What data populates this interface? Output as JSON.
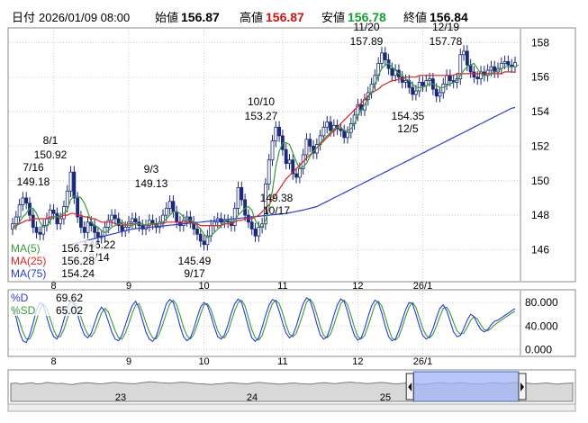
{
  "header": {
    "date_label": "日付",
    "datetime": "2026/01/09 08:00",
    "open_label": "始値",
    "open": "156.87",
    "high_label": "高値",
    "high": "156.87",
    "low_label": "安値",
    "low": "156.78",
    "close_label": "終値",
    "close": "156.84",
    "colors": {
      "high": "#d01010",
      "low": "#10a030"
    }
  },
  "chart_data": [
    {
      "type": "candlestick",
      "title": "",
      "x_ticks": [
        "8",
        "9",
        "10",
        "11",
        "12",
        "26/1"
      ],
      "y_ticks": [
        "146",
        "148",
        "150",
        "152",
        "154",
        "156",
        "158"
      ],
      "ylim": [
        144.2,
        158.8
      ],
      "grid": true,
      "legend_position": "bottom-left",
      "legend": [
        {
          "name": "MA(5)",
          "value": "156.71",
          "color": "#3a9a3a"
        },
        {
          "name": "MA(25)",
          "value": "156.28",
          "color": "#e02020"
        },
        {
          "name": "MA(75)",
          "value": "154.24",
          "color": "#2a3adc"
        }
      ],
      "annotations": [
        {
          "label": "7/16",
          "value": "149.18"
        },
        {
          "label": "8/1",
          "value": "150.92"
        },
        {
          "label": "8/14",
          "value": "146.22"
        },
        {
          "label": "9/3",
          "value": "149.13"
        },
        {
          "label": "9/17",
          "value": "145.49"
        },
        {
          "label": "10/10",
          "value": "153.27"
        },
        {
          "label": "10/17",
          "value": "149.38"
        },
        {
          "label": "11/20",
          "value": "157.89"
        },
        {
          "label": "12/5",
          "value": "154.35"
        },
        {
          "label": "12/19",
          "value": "157.78"
        }
      ],
      "colors": {
        "up": "#ffffff",
        "down": "#1a2a7a",
        "wick": "#1a2a7a"
      },
      "closes": [
        147.5,
        147.9,
        148.6,
        149.0,
        148.7,
        148.0,
        147.3,
        147.0,
        146.9,
        147.4,
        147.8,
        148.3,
        148.1,
        147.5,
        147.8,
        148.5,
        149.4,
        150.5,
        149.0,
        147.9,
        147.3,
        147.0,
        147.6,
        147.4,
        147.0,
        146.7,
        146.8,
        147.3,
        147.7,
        148.0,
        147.8,
        147.4,
        147.1,
        147.3,
        147.6,
        147.8,
        147.6,
        147.4,
        147.2,
        147.4,
        147.7,
        147.5,
        147.3,
        147.6,
        148.0,
        148.4,
        148.8,
        148.2,
        147.6,
        147.4,
        147.7,
        147.9,
        147.6,
        147.2,
        146.9,
        146.5,
        146.3,
        146.8,
        147.4,
        147.6,
        147.8,
        147.6,
        147.7,
        147.6,
        147.4,
        148.4,
        149.6,
        148.9,
        148.0,
        147.6,
        147.2,
        146.8,
        147.3,
        147.5,
        149.8,
        151.2,
        152.3,
        153.1,
        152.6,
        151.8,
        151.0,
        151.2,
        150.4,
        150.2,
        150.7,
        151.5,
        152.4,
        152.0,
        151.6,
        152.1,
        152.6,
        153.1,
        153.4,
        152.9,
        153.2,
        153.0,
        152.9,
        152.5,
        152.8,
        153.3,
        153.8,
        154.4,
        154.1,
        154.7,
        155.1,
        155.6,
        156.1,
        156.8,
        157.4,
        157.0,
        156.5,
        156.1,
        156.4,
        156.0,
        155.7,
        155.8,
        155.4,
        155.0,
        155.2,
        155.7,
        155.5,
        155.8,
        155.9,
        155.3,
        154.9,
        155.1,
        155.6,
        156.1,
        155.8,
        155.7,
        155.9,
        157.3,
        157.5,
        156.7,
        156.3,
        156.0,
        155.9,
        156.3,
        156.1,
        156.4,
        156.6,
        156.3,
        156.5,
        156.8,
        156.9,
        156.7,
        156.6,
        156.84
      ],
      "ma5": [
        147.2,
        147.3,
        147.6,
        147.9,
        148.1,
        148.4,
        148.4,
        148.1,
        147.6,
        147.3,
        147.4,
        147.7,
        147.9,
        147.9,
        148.0,
        148.1,
        148.3,
        148.9,
        149.1,
        149.1,
        149.0,
        148.7,
        148.2,
        147.6,
        147.4,
        147.3,
        147.1,
        147.0,
        147.1,
        147.3,
        147.4,
        147.5,
        147.6,
        147.5,
        147.4,
        147.4,
        147.5,
        147.5,
        147.5,
        147.4,
        147.5,
        147.5,
        147.4,
        147.5,
        147.6,
        147.8,
        148.0,
        148.2,
        148.2,
        148.1,
        147.9,
        147.8,
        147.7,
        147.6,
        147.4,
        147.2,
        146.9,
        146.7,
        146.8,
        147.0,
        147.2,
        147.4,
        147.7,
        147.7,
        147.6,
        147.7,
        148.0,
        148.2,
        148.4,
        148.5,
        148.3,
        147.7,
        147.4,
        147.3,
        147.7,
        148.4,
        149.4,
        150.8,
        151.7,
        152.2,
        152.2,
        152.1,
        151.6,
        151.1,
        150.7,
        150.8,
        151.0,
        151.4,
        151.7,
        151.9,
        152.2,
        152.4,
        152.6,
        152.8,
        153.0,
        153.1,
        153.1,
        152.9,
        152.9,
        153.0,
        153.3,
        153.8,
        154.1,
        154.4,
        154.8,
        155.1,
        155.6,
        156.1,
        156.5,
        156.7,
        156.8,
        156.6,
        156.4,
        156.2,
        156.1,
        155.9,
        155.8,
        155.6,
        155.4,
        155.4,
        155.4,
        155.5,
        155.6,
        155.6,
        155.5,
        155.4,
        155.4,
        155.5,
        155.6,
        155.7,
        155.8,
        156.1,
        156.4,
        156.6,
        156.7,
        156.8,
        156.5,
        156.2,
        156.1,
        156.1,
        156.2,
        156.3,
        156.4,
        156.5,
        156.6,
        156.6,
        156.6,
        156.6,
        156.71
      ],
      "ma25": [
        147.3,
        147.4,
        147.5,
        147.6,
        147.7,
        147.7,
        147.8,
        147.8,
        147.8,
        147.8,
        147.8,
        147.9,
        147.9,
        147.9,
        147.9,
        148.0,
        148.0,
        148.1,
        148.1,
        148.0,
        148.0,
        147.9,
        147.9,
        147.8,
        147.8,
        147.7,
        147.6,
        147.6,
        147.6,
        147.6,
        147.5,
        147.5,
        147.5,
        147.4,
        147.5,
        147.5,
        147.5,
        147.5,
        147.5,
        147.4,
        147.4,
        147.5,
        147.5,
        147.5,
        147.5,
        147.6,
        147.6,
        147.6,
        147.6,
        147.6,
        147.6,
        147.6,
        147.6,
        147.5,
        147.5,
        147.4,
        147.4,
        147.4,
        147.4,
        147.4,
        147.4,
        147.4,
        147.5,
        147.5,
        147.5,
        147.6,
        147.7,
        147.7,
        147.8,
        147.8,
        147.8,
        147.9,
        148.0,
        148.2,
        148.4,
        148.6,
        148.9,
        149.2,
        149.5,
        149.8,
        150.1,
        150.3,
        150.5,
        150.7,
        150.9,
        151.1,
        151.3,
        151.5,
        151.7,
        151.9,
        152.1,
        152.3,
        152.5,
        152.7,
        152.9,
        153.1,
        153.3,
        153.5,
        153.7,
        153.9,
        154.1,
        154.3,
        154.5,
        154.7,
        154.9,
        155.1,
        155.2,
        155.3,
        155.5,
        155.6,
        155.7,
        155.8,
        155.8,
        155.9,
        155.9,
        156.0,
        156.0,
        156.0,
        156.0,
        156.1,
        156.1,
        156.1,
        156.1,
        156.1,
        156.1,
        156.1,
        156.1,
        156.1,
        156.1,
        156.1,
        156.2,
        156.2,
        156.2,
        156.2,
        156.2,
        156.2,
        156.2,
        156.2,
        156.2,
        156.2,
        156.2,
        156.2,
        156.2,
        156.2,
        156.3,
        156.3,
        156.3,
        156.28
      ],
      "ma75": [
        146.3,
        146.35,
        146.4,
        146.45,
        146.5,
        146.55,
        146.6,
        146.65,
        146.7,
        146.75,
        146.8,
        146.85,
        146.9,
        146.95,
        147.0,
        147.05,
        147.1,
        147.15,
        147.2,
        147.22,
        147.24,
        147.26,
        147.28,
        147.3,
        147.32,
        147.34,
        147.36,
        147.38,
        147.4,
        147.42,
        147.44,
        147.46,
        147.48,
        147.5,
        147.52,
        147.54,
        147.56,
        147.58,
        147.6,
        147.62,
        147.64,
        147.66,
        147.68,
        147.7,
        147.72,
        147.74,
        147.76,
        147.78,
        147.8,
        147.82,
        147.84,
        147.86,
        147.88,
        147.9,
        147.92,
        147.94,
        147.96,
        147.98,
        148.0,
        148.02,
        148.04,
        148.06,
        148.08,
        148.1,
        148.14,
        148.18,
        148.22,
        148.26,
        148.3,
        148.35,
        148.4,
        148.45,
        148.5,
        148.6,
        148.7,
        148.8,
        148.9,
        149.0,
        149.1,
        149.2,
        149.3,
        149.4,
        149.5,
        149.6,
        149.7,
        149.8,
        149.9,
        150.0,
        150.1,
        150.2,
        150.3,
        150.4,
        150.5,
        150.6,
        150.7,
        150.8,
        150.9,
        151.0,
        151.1,
        151.2,
        151.3,
        151.4,
        151.5,
        151.6,
        151.7,
        151.8,
        151.9,
        152.0,
        152.1,
        152.2,
        152.3,
        152.4,
        152.5,
        152.6,
        152.7,
        152.8,
        152.9,
        153.0,
        153.1,
        153.2,
        153.3,
        153.4,
        153.5,
        153.6,
        153.7,
        153.8,
        153.9,
        154.0,
        154.1,
        154.2,
        154.24
      ]
    },
    {
      "type": "line",
      "title": "",
      "y_ticks": [
        "0.000",
        "40.000",
        "80.000"
      ],
      "ylim": [
        -10,
        100
      ],
      "grid": true,
      "legend": [
        {
          "name": "%D",
          "value": "69.62",
          "color": "#2a3adc"
        },
        {
          "name": "%SD",
          "value": "65.02",
          "color": "#3a9a3a"
        }
      ],
      "d": [
        70,
        55,
        30,
        15,
        12,
        25,
        45,
        68,
        80,
        75,
        55,
        35,
        22,
        18,
        30,
        50,
        70,
        82,
        78,
        60,
        40,
        25,
        20,
        28,
        45,
        62,
        72,
        65,
        48,
        30,
        18,
        15,
        25,
        42,
        60,
        75,
        82,
        70,
        50,
        30,
        18,
        14,
        22,
        40,
        60,
        78,
        85,
        80,
        62,
        40,
        22,
        15,
        20,
        35,
        55,
        72,
        80,
        75,
        58,
        38,
        22,
        18,
        25,
        42,
        62,
        78,
        86,
        80,
        60,
        38,
        20,
        14,
        20,
        38,
        58,
        75,
        85,
        82,
        65,
        45,
        28,
        20,
        25,
        40,
        60,
        78,
        88,
        84,
        66,
        44,
        25,
        18,
        22,
        38,
        58,
        76,
        86,
        82,
        64,
        42,
        24,
        16,
        20,
        36,
        56,
        74,
        84,
        80,
        62,
        40,
        22,
        15,
        18,
        32,
        50,
        68,
        80,
        78,
        60,
        40,
        24,
        18,
        22,
        36,
        54,
        70,
        76,
        66,
        48,
        30,
        22,
        24,
        36,
        50,
        60,
        56,
        44,
        34,
        30,
        34,
        42,
        48,
        50,
        54,
        58,
        62,
        66,
        69.62
      ],
      "sd": [
        60,
        62,
        48,
        30,
        18,
        18,
        30,
        50,
        68,
        78,
        70,
        52,
        34,
        22,
        22,
        34,
        52,
        70,
        80,
        72,
        55,
        38,
        26,
        22,
        30,
        46,
        62,
        70,
        64,
        48,
        32,
        20,
        18,
        28,
        44,
        62,
        76,
        78,
        64,
        46,
        30,
        20,
        18,
        28,
        44,
        62,
        78,
        84,
        76,
        58,
        38,
        24,
        18,
        26,
        42,
        60,
        76,
        78,
        68,
        50,
        32,
        22,
        20,
        30,
        48,
        66,
        80,
        84,
        74,
        54,
        34,
        20,
        16,
        24,
        42,
        62,
        78,
        84,
        78,
        62,
        42,
        26,
        22,
        28,
        44,
        62,
        80,
        86,
        78,
        60,
        40,
        24,
        20,
        26,
        42,
        60,
        78,
        84,
        76,
        58,
        38,
        22,
        18,
        24,
        40,
        58,
        76,
        82,
        74,
        56,
        36,
        20,
        16,
        22,
        38,
        56,
        72,
        80,
        72,
        54,
        36,
        24,
        20,
        26,
        40,
        56,
        70,
        72,
        62,
        46,
        32,
        26,
        28,
        38,
        50,
        56,
        52,
        42,
        34,
        32,
        36,
        42,
        46,
        50,
        54,
        58,
        62,
        65.02
      ]
    },
    {
      "type": "area",
      "title": "",
      "x_ticks": [
        "23",
        "24",
        "25"
      ],
      "values": [
        60,
        62,
        58,
        61,
        63,
        59,
        60,
        64,
        62,
        60,
        61,
        58,
        57,
        60,
        62,
        63,
        61,
        59,
        60,
        62,
        64,
        63,
        61,
        60,
        59,
        62,
        64,
        66,
        65,
        63,
        62,
        61,
        63,
        65,
        64,
        62,
        60,
        59,
        58,
        57,
        59,
        60,
        62,
        63,
        61,
        60,
        59,
        62,
        64,
        63,
        61,
        60,
        58,
        59,
        61,
        62,
        60,
        59,
        58,
        60,
        62,
        63,
        61,
        60,
        62,
        64,
        65,
        63,
        62,
        60,
        61,
        63,
        64,
        62,
        60,
        59,
        61,
        62,
        60,
        58,
        57,
        59,
        61,
        63,
        62,
        60,
        61,
        63,
        62,
        60,
        59,
        58,
        60,
        62,
        63,
        61,
        60,
        62,
        64,
        63,
        62,
        60,
        59,
        61,
        62,
        60,
        58,
        60,
        61,
        62
      ],
      "selected_range": [
        0.8,
        1.0
      ]
    }
  ],
  "panel_axes": {
    "main_x_ticks_label": "",
    "osc_x_ticks": [
      "8",
      "9",
      "10",
      "11",
      "12",
      "26/1"
    ]
  }
}
